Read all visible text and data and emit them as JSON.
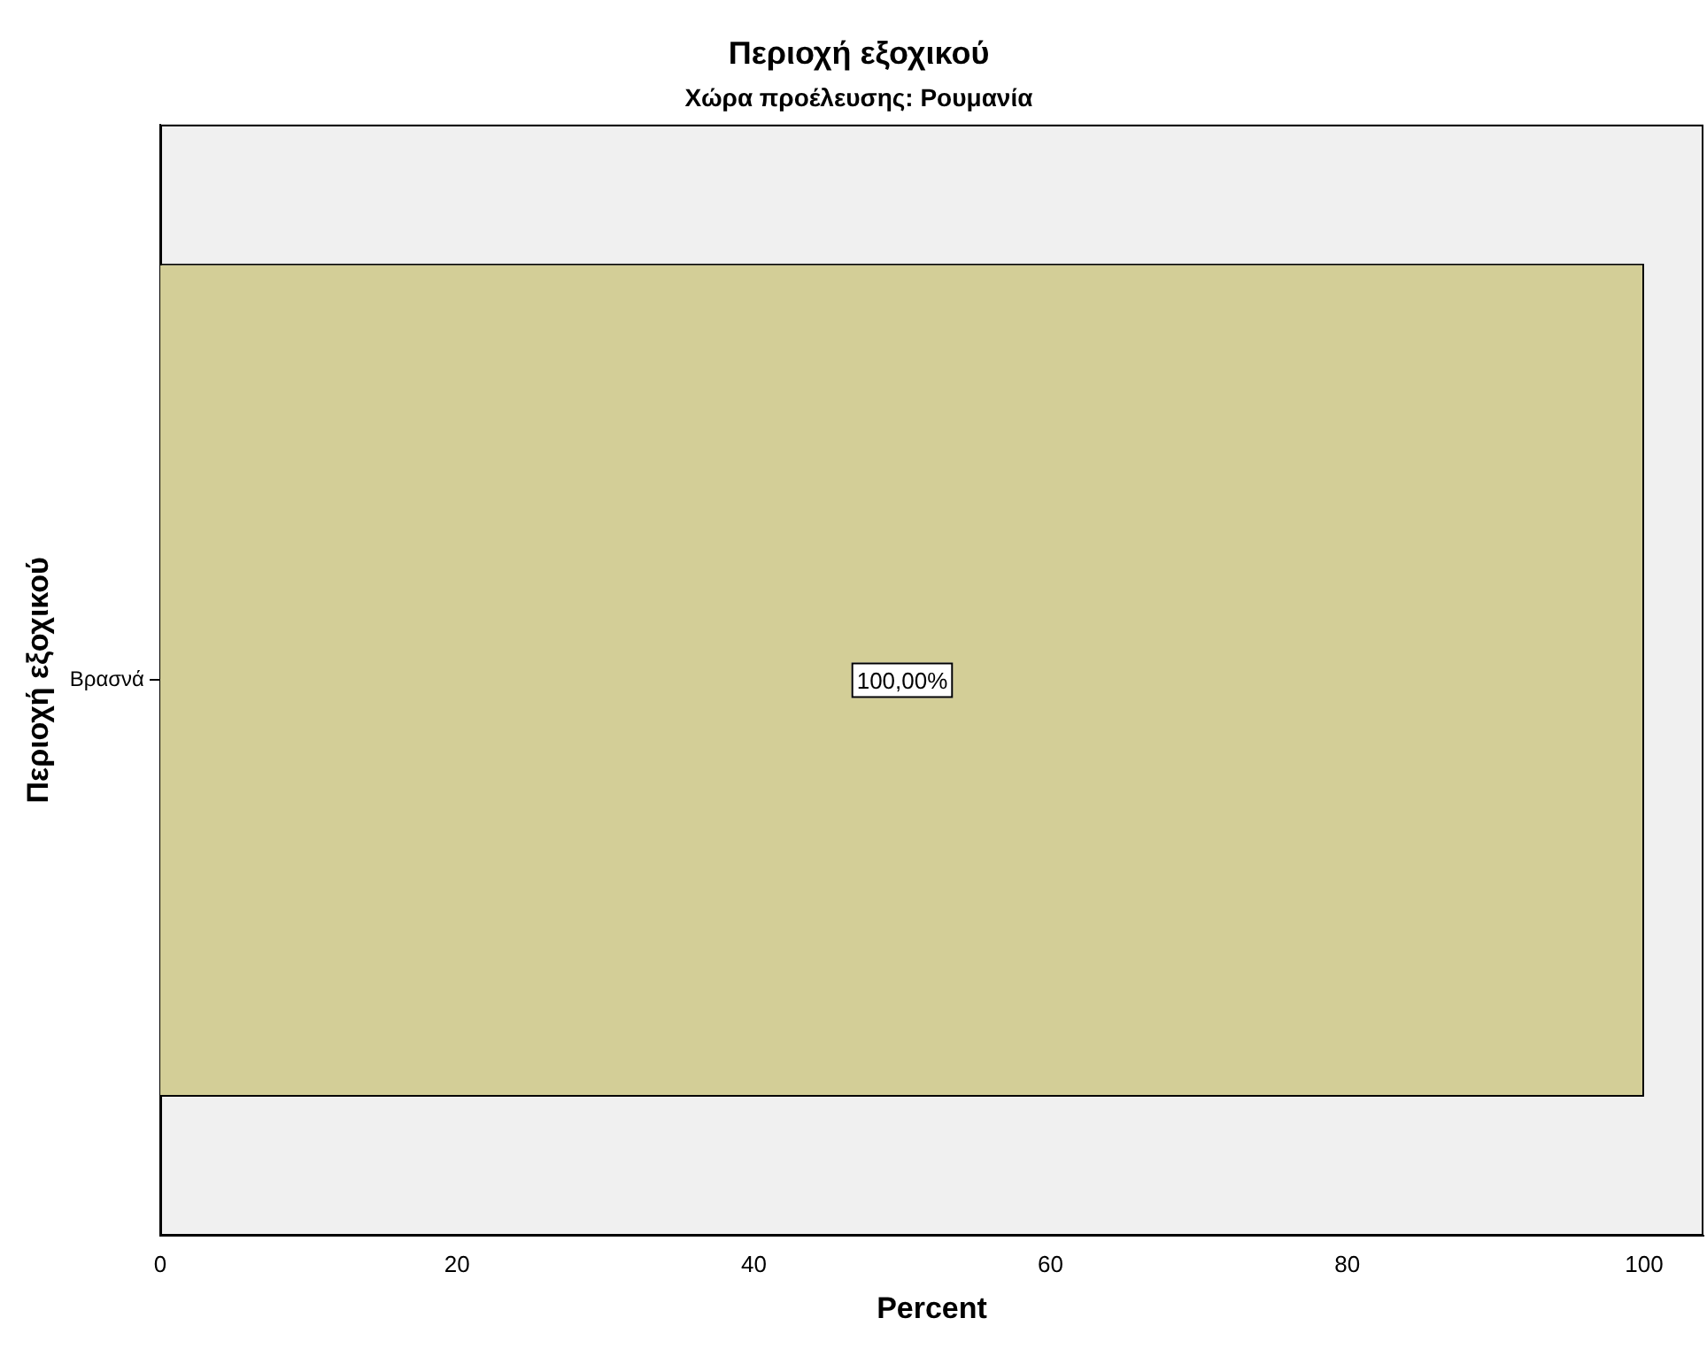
{
  "chart_data": {
    "type": "bar",
    "orientation": "horizontal",
    "title": "Περιοχή εξοχικού",
    "subtitle": "Χώρα προέλευσης: Ρουμανία",
    "xlabel": "Percent",
    "ylabel": "Περιοχή εξοχικού",
    "categories": [
      "Βρασνά"
    ],
    "values": [
      100
    ],
    "color": "#d3ce97",
    "value_labels": [
      "100,00%"
    ],
    "xlim": [
      0,
      104
    ],
    "xticks": [
      0,
      20,
      40,
      60,
      80,
      100
    ],
    "grid": false,
    "legend": false
  }
}
